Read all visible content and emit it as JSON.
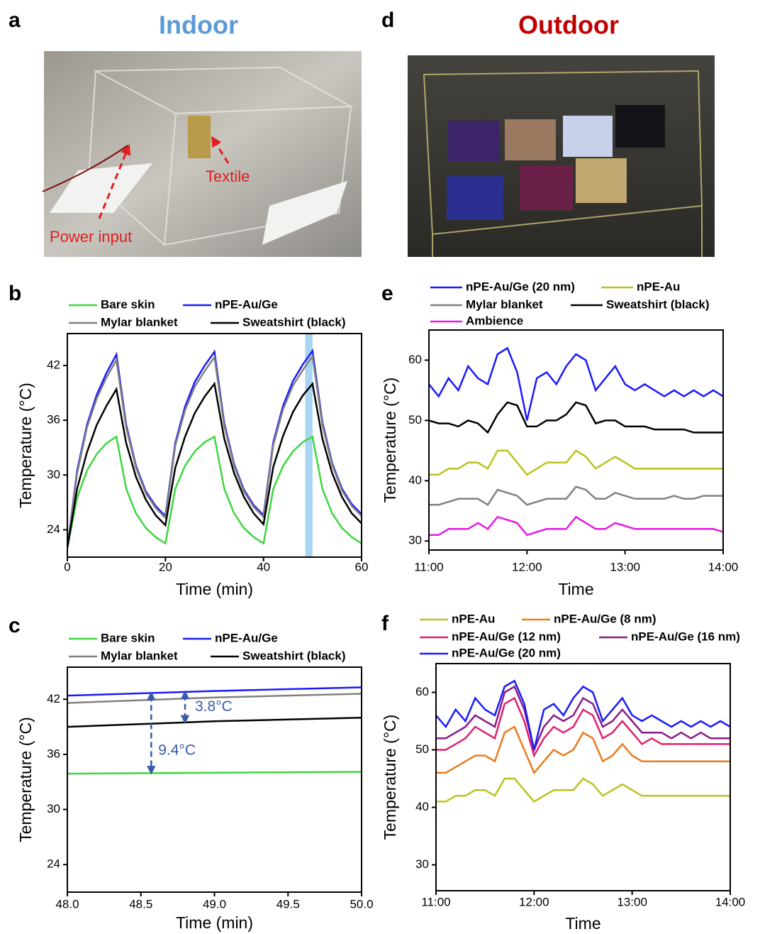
{
  "panels": {
    "a": {
      "letter": "a",
      "title": "Indoor",
      "labels": [
        "Power input",
        "Textile"
      ]
    },
    "d": {
      "letter": "d",
      "title": "Outdoor"
    }
  },
  "chart_data": [
    {
      "type": "line",
      "panel": "b",
      "x_label": "Time (min)",
      "y_label": "Temperature (°C)",
      "x": [
        0,
        2,
        4,
        6,
        8,
        10,
        12,
        14,
        16,
        18,
        20,
        22,
        24,
        26,
        28,
        30,
        32,
        34,
        36,
        38,
        40,
        42,
        44,
        46,
        48,
        50,
        52,
        54,
        56,
        58,
        60
      ],
      "xlim": [
        0,
        60
      ],
      "xticks": [
        0,
        20,
        40,
        60
      ],
      "ylim": [
        21,
        45.5
      ],
      "yticks": [
        24,
        30,
        36,
        42
      ],
      "highlight": {
        "range": [
          48.5,
          50
        ],
        "color": "#a9d5f2"
      },
      "series": [
        {
          "name": "Bare skin",
          "color": "#3fd63f",
          "values": [
            22,
            27.5,
            30.5,
            32.3,
            33.5,
            34.2,
            28.5,
            25.8,
            24.2,
            23.2,
            22.5,
            28.5,
            31,
            32.6,
            33.6,
            34.2,
            28.5,
            25.8,
            24.2,
            23.2,
            22.5,
            28.5,
            31,
            32.6,
            33.6,
            34.2,
            28.5,
            25.8,
            24.2,
            23.2,
            22.5
          ]
        },
        {
          "name": "nPE-Au/Ge",
          "color": "#1a1aff",
          "values": [
            22,
            30.5,
            35.5,
            38.8,
            41.2,
            43.2,
            35.5,
            31,
            28.2,
            26.6,
            25.5,
            33.5,
            37.5,
            40.2,
            42,
            43.5,
            35.7,
            31.2,
            28.4,
            26.7,
            25.6,
            33.6,
            37.6,
            40.3,
            42.1,
            43.6,
            35.8,
            31.3,
            28.5,
            26.8,
            25.7
          ]
        },
        {
          "name": "Mylar blanket",
          "color": "#808080",
          "values": [
            22,
            30.2,
            35.2,
            38.4,
            40.7,
            42.6,
            35.2,
            30.8,
            28,
            26.4,
            25.3,
            33.2,
            37.1,
            39.7,
            41.4,
            42.9,
            35.4,
            31,
            28.2,
            26.5,
            25.4,
            33.3,
            37.2,
            39.8,
            41.5,
            43,
            35.5,
            31.1,
            28.3,
            26.6,
            25.5
          ]
        },
        {
          "name": "Sweatshirt (black)",
          "color": "#000000",
          "values": [
            22,
            28.5,
            32.5,
            35.5,
            37.6,
            39.4,
            33.5,
            29.8,
            27.3,
            25.6,
            24.5,
            30.8,
            34.2,
            36.8,
            38.6,
            40,
            34,
            30.2,
            27.6,
            25.8,
            24.6,
            30.9,
            34.3,
            36.9,
            38.7,
            40,
            34,
            30.2,
            27.6,
            25.8,
            24.7
          ]
        }
      ]
    },
    {
      "type": "line",
      "panel": "c",
      "x_label": "Time (min)",
      "y_label": "Temperature (°C)",
      "x": [
        48,
        49,
        50
      ],
      "xlim": [
        48,
        50
      ],
      "xticks": [
        {
          "value": 48,
          "label": "48.0"
        },
        {
          "value": 48.5,
          "label": "48.5"
        },
        {
          "value": 49,
          "label": "49.0"
        },
        {
          "value": 49.5,
          "label": "49.5"
        },
        {
          "value": 50,
          "label": "50.0"
        }
      ],
      "ylim": [
        21,
        45.5
      ],
      "yticks": [
        24,
        30,
        36,
        42
      ],
      "annotations": [
        "3.8°C",
        "9.4°C"
      ],
      "series": [
        {
          "name": "Bare skin",
          "color": "#3fd63f",
          "values": [
            33.9,
            34,
            34.1
          ]
        },
        {
          "name": "nPE-Au/Ge",
          "color": "#1a1aff",
          "values": [
            42.4,
            42.9,
            43.3
          ]
        },
        {
          "name": "Mylar blanket",
          "color": "#808080",
          "values": [
            41.6,
            42.2,
            42.6
          ]
        },
        {
          "name": "Sweatshirt (black)",
          "color": "#000000",
          "values": [
            39,
            39.6,
            40
          ]
        }
      ]
    },
    {
      "type": "line",
      "panel": "e",
      "x_label": "Time",
      "y_label": "Temperature (°C)",
      "x": [
        11,
        11.1,
        11.2,
        11.3,
        11.4,
        11.5,
        11.6,
        11.7,
        11.8,
        11.9,
        12,
        12.1,
        12.2,
        12.3,
        12.4,
        12.5,
        12.6,
        12.7,
        12.8,
        12.9,
        13,
        13.1,
        13.2,
        13.3,
        13.4,
        13.5,
        13.6,
        13.7,
        13.8,
        13.9,
        14
      ],
      "xlim": [
        11,
        14
      ],
      "xticks": [
        {
          "value": 11,
          "label": "11:00"
        },
        {
          "value": 12,
          "label": "12:00"
        },
        {
          "value": 13,
          "label": "13:00"
        },
        {
          "value": 14,
          "label": "14:00"
        }
      ],
      "ylim": [
        28.5,
        65
      ],
      "yticks": [
        30,
        40,
        50,
        60
      ],
      "series": [
        {
          "name": "nPE-Au/Ge (20 nm)",
          "color": "#1a1aff",
          "values": [
            56,
            54,
            57,
            55,
            59,
            57,
            56,
            61,
            62,
            58,
            50,
            57,
            58,
            56,
            59,
            61,
            60,
            55,
            57,
            59,
            56,
            55,
            56,
            55,
            54,
            55,
            54,
            55,
            54,
            55,
            54
          ]
        },
        {
          "name": "nPE-Au",
          "color": "#bcc21c",
          "values": [
            41,
            41,
            42,
            42,
            43,
            43,
            42,
            45,
            45,
            43,
            41,
            42,
            43,
            43,
            43,
            45,
            44,
            42,
            43,
            44,
            43,
            42,
            42,
            42,
            42,
            42,
            42,
            42,
            42,
            42,
            42
          ]
        },
        {
          "name": "Mylar blanket",
          "color": "#808080",
          "values": [
            36,
            36,
            36.5,
            37,
            37,
            37,
            36,
            38.5,
            38,
            37.5,
            36,
            36.5,
            37,
            37,
            37,
            39,
            38.5,
            37,
            37,
            38,
            37.5,
            37,
            37,
            37,
            37,
            37.5,
            37,
            37,
            37.5,
            37.5,
            37.5
          ]
        },
        {
          "name": "Sweatshirt (black)",
          "color": "#000000",
          "values": [
            50,
            49.5,
            49.5,
            49,
            50,
            49.5,
            48,
            51,
            53,
            52.5,
            49,
            49,
            50,
            50,
            51,
            53,
            52.5,
            49.5,
            50,
            50,
            49,
            49,
            49,
            48.5,
            48.5,
            48.5,
            48.5,
            48,
            48,
            48,
            48
          ]
        },
        {
          "name": "Ambience",
          "color": "#e619e6",
          "values": [
            31,
            31,
            32,
            32,
            32,
            33,
            32,
            34,
            33.5,
            33,
            31,
            31.5,
            32,
            32,
            32,
            34,
            33,
            32,
            32,
            33,
            32.5,
            32,
            32,
            32,
            32,
            32,
            32,
            32,
            32,
            32,
            31.5
          ]
        }
      ]
    },
    {
      "type": "line",
      "panel": "f",
      "x_label": "Time",
      "y_label": "Temperature (°C)",
      "x": [
        11,
        11.1,
        11.2,
        11.3,
        11.4,
        11.5,
        11.6,
        11.7,
        11.8,
        11.9,
        12,
        12.1,
        12.2,
        12.3,
        12.4,
        12.5,
        12.6,
        12.7,
        12.8,
        12.9,
        13,
        13.1,
        13.2,
        13.3,
        13.4,
        13.5,
        13.6,
        13.7,
        13.8,
        13.9,
        14
      ],
      "xlim": [
        11,
        14
      ],
      "xticks": [
        {
          "value": 11,
          "label": "11:00"
        },
        {
          "value": 12,
          "label": "12:00"
        },
        {
          "value": 13,
          "label": "13:00"
        },
        {
          "value": 14,
          "label": "14:00"
        }
      ],
      "ylim": [
        25.5,
        65
      ],
      "yticks": [
        30,
        40,
        50,
        60
      ],
      "series": [
        {
          "name": "nPE-Au",
          "color": "#bcc21c",
          "values": [
            41,
            41,
            42,
            42,
            43,
            43,
            42,
            45,
            45,
            43,
            41,
            42,
            43,
            43,
            43,
            45,
            44,
            42,
            43,
            44,
            43,
            42,
            42,
            42,
            42,
            42,
            42,
            42,
            42,
            42,
            42
          ]
        },
        {
          "name": "nPE-Au/Ge (8 nm)",
          "color": "#ec7a1c",
          "values": [
            46,
            46,
            47,
            48,
            49,
            49,
            48,
            53,
            54,
            50,
            46,
            48,
            50,
            49,
            50,
            53,
            52,
            48,
            49,
            51,
            49,
            48,
            48,
            48,
            48,
            48,
            48,
            48,
            48,
            48,
            48
          ]
        },
        {
          "name": "nPE-Au/Ge (12 nm)",
          "color": "#e0206e",
          "values": [
            50,
            50,
            51,
            52,
            54,
            53,
            52,
            58,
            59,
            55,
            49,
            52,
            54,
            53,
            54,
            57,
            56,
            52,
            53,
            55,
            53,
            51,
            52,
            51,
            51,
            51,
            51,
            51,
            51,
            51,
            51
          ]
        },
        {
          "name": "nPE-Au/Ge (16 nm)",
          "color": "#8a1a8a",
          "values": [
            52,
            52,
            53,
            54,
            56,
            55,
            54,
            60,
            61,
            57,
            50,
            54,
            56,
            55,
            56,
            59,
            58,
            54,
            55,
            57,
            55,
            53,
            53,
            53,
            52,
            53,
            52,
            53,
            52,
            52,
            52
          ]
        },
        {
          "name": "nPE-Au/Ge (20 nm)",
          "color": "#1a1aff",
          "values": [
            56,
            54,
            57,
            55,
            59,
            57,
            56,
            61,
            62,
            58,
            50,
            57,
            58,
            56,
            59,
            61,
            60,
            55,
            57,
            59,
            56,
            55,
            56,
            55,
            54,
            55,
            54,
            55,
            54,
            55,
            54
          ]
        }
      ]
    }
  ]
}
